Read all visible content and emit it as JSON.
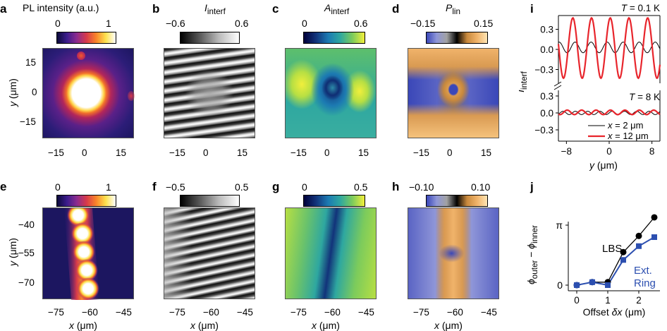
{
  "panels": [
    {
      "label": "a",
      "title_html": "PL intensity (a.u.)",
      "cmin": "0",
      "cmax": "1"
    },
    {
      "label": "b",
      "title_html": "<i>I</i><sub>interf</sub>",
      "cmin": "−0.6",
      "cmax": "0.6"
    },
    {
      "label": "c",
      "title_html": "<i>A</i><sub>interf</sub>",
      "cmin": "0",
      "cmax": "0.6"
    },
    {
      "label": "d",
      "title_html": "<i>P</i><sub>lin</sub>",
      "cmin": "−0.15",
      "cmax": "0.15"
    },
    {
      "label": "e",
      "cmin": "0",
      "cmax": "1"
    },
    {
      "label": "f",
      "cmin": "−0.5",
      "cmax": "0.5"
    },
    {
      "label": "g",
      "cmin": "0",
      "cmax": "0.5"
    },
    {
      "label": "h",
      "cmin": "−0.10",
      "cmax": "0.10"
    },
    {
      "label": "i"
    },
    {
      "label": "j"
    }
  ],
  "row1": {
    "x_ticks": [
      "−15",
      "0",
      "15"
    ],
    "y_ticks": [
      "15",
      "0",
      "−15"
    ],
    "y_label_html": "<i>y</i> (μm)"
  },
  "row2": {
    "x_ticks": [
      "−75",
      "−60",
      "−45"
    ],
    "y_ticks": [
      "−40",
      "−55",
      "−70"
    ],
    "y_label_html": "<i>y</i> (μm)",
    "x_label_html": "<i>x</i> (μm)"
  },
  "colormaps": {
    "pl": [
      "#0b0a3a",
      "#3b1c8c",
      "#8a2b8f",
      "#d6394b",
      "#f9842a",
      "#fde24e",
      "#ffffff"
    ],
    "gray": [
      "#000000",
      "#5a5a5a",
      "#bdbdbd",
      "#ffffff"
    ],
    "viridis": [
      "#00003a",
      "#12337a",
      "#1c7ab2",
      "#2ea7a0",
      "#7ccb5c",
      "#f1ef3c"
    ],
    "pol": [
      "#3a47b8",
      "#8f96d8",
      "#a2a2a2",
      "#000000",
      "#c9893c",
      "#f0b36a",
      "#ffe5b4"
    ]
  },
  "chart_data": [
    {
      "type": "line",
      "panel": "i",
      "ylabel_html": "<i>I</i><sub>interf</sub>",
      "xlabel_html": "<i>y</i> (μm)",
      "x_ticks": [
        "−8",
        "0",
        "8"
      ],
      "y_ticks_upper": [
        "0.3",
        "0.0",
        "−0.3"
      ],
      "y_ticks_lower": [
        "0.3",
        "0.0",
        "−0.3"
      ],
      "upper_title_html": "<i>T</i> = 0.1 K",
      "lower_title_html": "<i>T</i> = 8 K",
      "xlim": [
        -9.5,
        9.5
      ],
      "series": [
        {
          "name_html": "<i>x</i> = 2 μm",
          "color": "#000000",
          "upper_amp": 0.08,
          "upper_period": 3.0,
          "lower_amp": 0.03
        },
        {
          "name_html": "<i>x</i> = 12 μm",
          "color": "#e8252c",
          "upper_amp": 0.45,
          "upper_period": 3.5,
          "lower_amp": 0.04
        }
      ]
    },
    {
      "type": "line",
      "panel": "j",
      "ylabel_html": "<i>ϕ</i><sub>outer</sub> − <i>ϕ</i><sub>inner</sub>",
      "xlabel_html": "Offset <i>δx</i> (μm)",
      "x_ticks": [
        "0",
        "1",
        "2"
      ],
      "y_ticks": [
        "π",
        "0"
      ],
      "series": [
        {
          "name": "LBS",
          "color": "#000000",
          "x": [
            0,
            0.5,
            1.0,
            1.5,
            2.0,
            2.5
          ],
          "y": [
            0,
            0.05,
            0.05,
            0.55,
            0.82,
            1.13
          ]
        },
        {
          "name_html": "Ext.<br>Ring",
          "color": "#2c4fb0",
          "x": [
            0,
            0.5,
            1.0,
            1.5,
            2.0,
            2.5
          ],
          "y": [
            0,
            0.05,
            0.0,
            0.42,
            0.65,
            0.8
          ]
        }
      ],
      "label_lbs": "LBS",
      "label_ext": "Ext.",
      "label_ring": "Ring"
    }
  ]
}
